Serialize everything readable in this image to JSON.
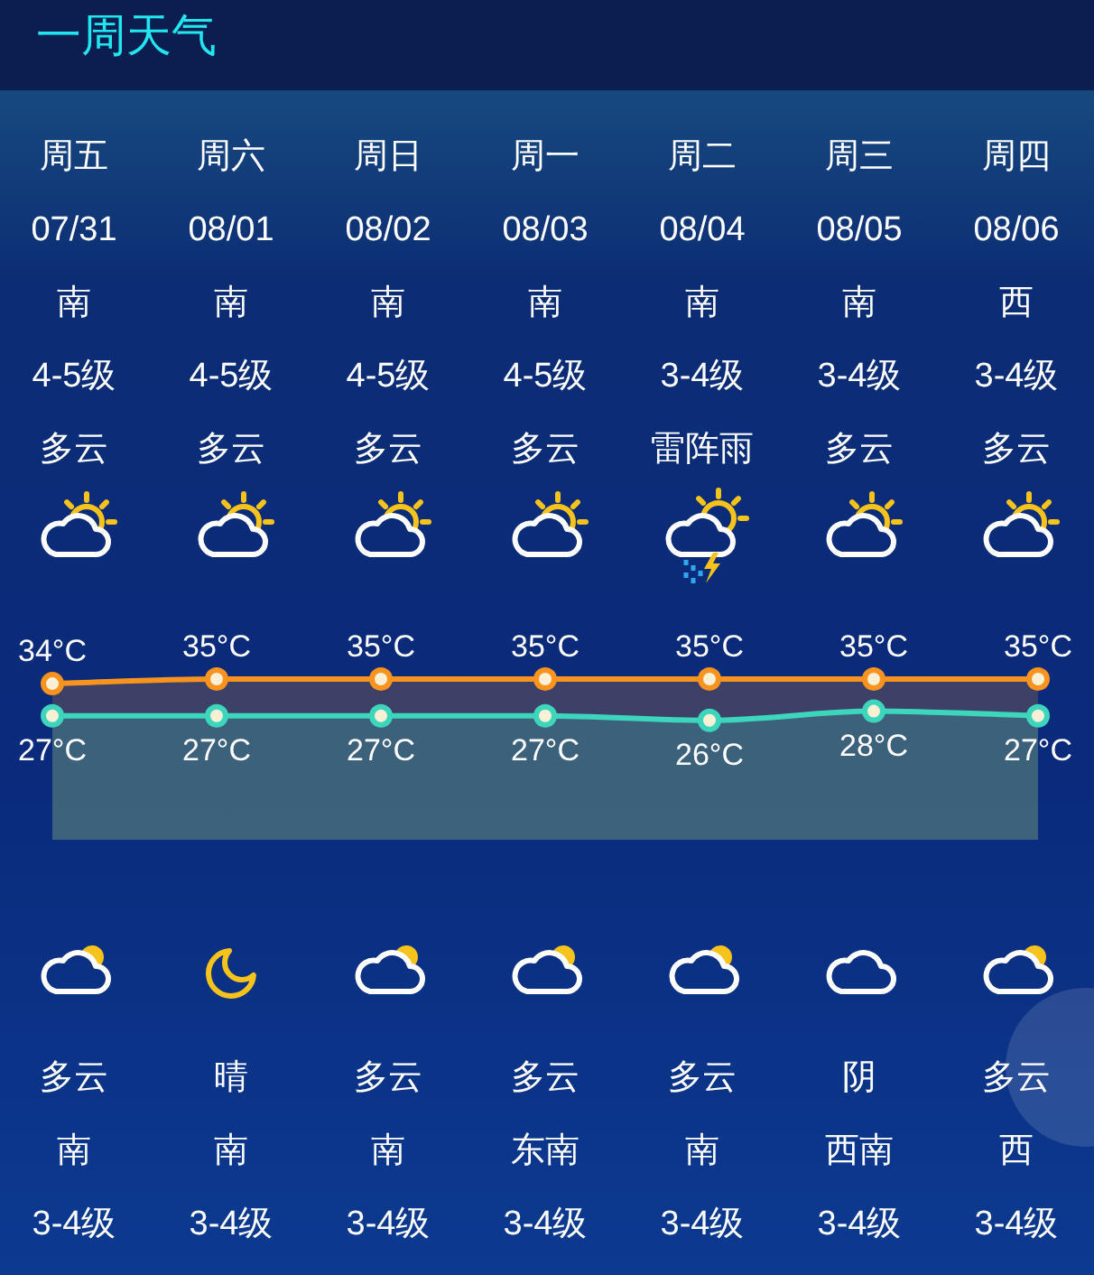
{
  "chart_data": [
    {
      "type": "other",
      "title": "一周天气",
      "annotations": [
        "周五",
        "周六",
        "周日",
        "周一",
        "周二",
        "周三",
        "周四",
        "07/31",
        "08/01",
        "08/02",
        "08/03",
        "08/04",
        "08/05",
        "08/06",
        "南",
        "南",
        "南",
        "南",
        "南",
        "南",
        "西",
        "4-5级",
        "4-5级",
        "4-5级",
        "4-5级",
        "3-4级",
        "3-4级",
        "3-4级",
        "多云",
        "多云",
        "多云",
        "多云",
        "雷阵雨",
        "多云",
        "多云"
      ]
    },
    {
      "type": "area",
      "categories": [
        null,
        null,
        null,
        null,
        null,
        null,
        null
      ],
      "series": [
        {
          "color": "#f7931e",
          "values": [
            34,
            35,
            35,
            35,
            35,
            35,
            35
          ],
          "value_labels": [
            "34°C",
            "35°C",
            "35°C",
            "35°C",
            "35°C",
            "35°C",
            "35°C"
          ]
        },
        {
          "color": "#3dd6bd",
          "values": [
            27,
            27,
            27,
            27,
            26,
            28,
            27
          ],
          "value_labels": [
            "27°C",
            "27°C",
            "27°C",
            "27°C",
            "26°C",
            "28°C",
            "27°C"
          ]
        }
      ],
      "marker": "circle"
    },
    {
      "type": "other",
      "annotations": [
        "多云",
        "晴",
        "多云",
        "多云",
        "多云",
        "阴",
        "多云",
        "南",
        "南",
        "南",
        "东南",
        "南",
        "西南",
        "西",
        "3-4级",
        "3-4级",
        "3-4级",
        "3-4级",
        "3-4级",
        "3-4级",
        "3-4级"
      ]
    }
  ]
}
